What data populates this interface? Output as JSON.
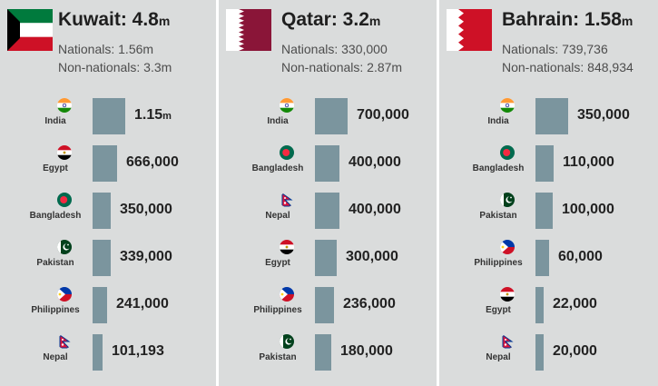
{
  "colors": {
    "bar": "#7b959e",
    "background": "#dadcdc",
    "divider": "#ffffff"
  },
  "chart_data": [
    {
      "type": "bar",
      "country": "Kuwait",
      "title": {
        "label": "Kuwait: 4.8",
        "unit": "m"
      },
      "nationals": "Nationals: 1.56m",
      "non_nationals": "Non-nationals: 3.3m",
      "categories": [
        "India",
        "Egypt",
        "Bangladesh",
        "Pakistan",
        "Philippines",
        "Nepal"
      ],
      "values": [
        1150000,
        666000,
        350000,
        339000,
        241000,
        101193
      ],
      "value_labels": [
        {
          "num": "1.15",
          "unit": "m"
        },
        {
          "num": "666,000",
          "unit": ""
        },
        {
          "num": "350,000",
          "unit": ""
        },
        {
          "num": "339,000",
          "unit": ""
        },
        {
          "num": "241,000",
          "unit": ""
        },
        {
          "num": "101,193",
          "unit": ""
        }
      ]
    },
    {
      "type": "bar",
      "country": "Qatar",
      "title": {
        "label": "Qatar: 3.2",
        "unit": "m"
      },
      "nationals": "Nationals: 330,000",
      "non_nationals": "Non-nationals: 2.87m",
      "categories": [
        "India",
        "Bangladesh",
        "Nepal",
        "Egypt",
        "Philippines",
        "Pakistan"
      ],
      "values": [
        700000,
        400000,
        400000,
        300000,
        236000,
        180000
      ],
      "value_labels": [
        {
          "num": "700,000",
          "unit": ""
        },
        {
          "num": "400,000",
          "unit": ""
        },
        {
          "num": "400,000",
          "unit": ""
        },
        {
          "num": "300,000",
          "unit": ""
        },
        {
          "num": "236,000",
          "unit": ""
        },
        {
          "num": "180,000",
          "unit": ""
        }
      ]
    },
    {
      "type": "bar",
      "country": "Bahrain",
      "title": {
        "label": "Bahrain: 1.58",
        "unit": "m"
      },
      "nationals": "Nationals: 739,736",
      "non_nationals": "Non-nationals: 848,934",
      "categories": [
        "India",
        "Bangladesh",
        "Pakistan",
        "Philippines",
        "Egypt",
        "Nepal"
      ],
      "values": [
        350000,
        110000,
        100000,
        60000,
        22000,
        20000
      ],
      "value_labels": [
        {
          "num": "350,000",
          "unit": ""
        },
        {
          "num": "110,000",
          "unit": ""
        },
        {
          "num": "100,000",
          "unit": ""
        },
        {
          "num": "60,000",
          "unit": ""
        },
        {
          "num": "22,000",
          "unit": ""
        },
        {
          "num": "20,000",
          "unit": ""
        }
      ]
    }
  ]
}
